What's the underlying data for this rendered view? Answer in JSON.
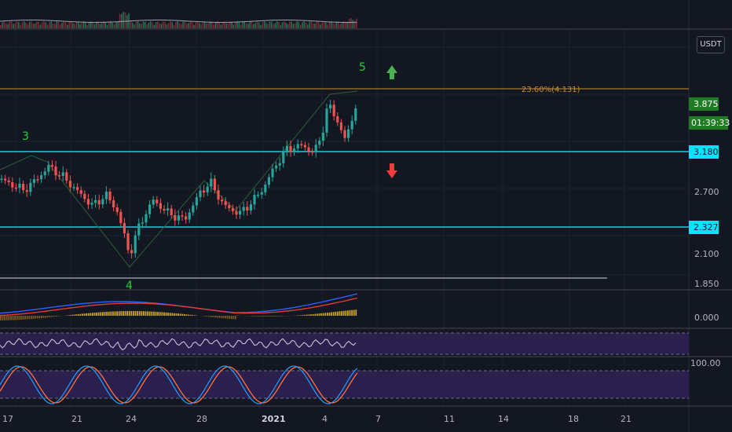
{
  "currency": "USDT",
  "fib_label": "23.60%(4.131)",
  "wave_labels": [
    "3",
    "4",
    "5"
  ],
  "price_tags": {
    "last_price": "3.875",
    "countdown": "01:39:33",
    "upper_line": "3.180",
    "lower_line": "2.327"
  },
  "price_axis_labels": [
    "2.700",
    "2.100",
    "1.850"
  ],
  "macd_axis_label": "0.000",
  "stoch_axis_label": "100.00",
  "time_axis_labels": [
    "17",
    "21",
    "24",
    "28",
    "2021",
    "4",
    "7",
    "11",
    "14",
    "18",
    "21"
  ],
  "colors": {
    "background": "#131722",
    "bull_candle": "#26a69a",
    "bear_candle": "#ef5350",
    "cyan_line": "#26c6da",
    "fib_line": "#c9902b",
    "wave_label": "#26d13a",
    "up_arrow": "#4caf50",
    "down_arrow": "#ef3b3b",
    "tag_green": "#1e7d22",
    "tag_cyan": "#00e5ff",
    "macd_line": "#2962ff",
    "signal_line": "#e53935",
    "rsi_line": "#c9c3d8",
    "stoch_k": "#2196f3",
    "stoch_d": "#ff7043",
    "indicator_band": "#3b2a6b"
  },
  "icons": [
    "up-arrow-icon",
    "down-arrow-icon"
  ]
}
